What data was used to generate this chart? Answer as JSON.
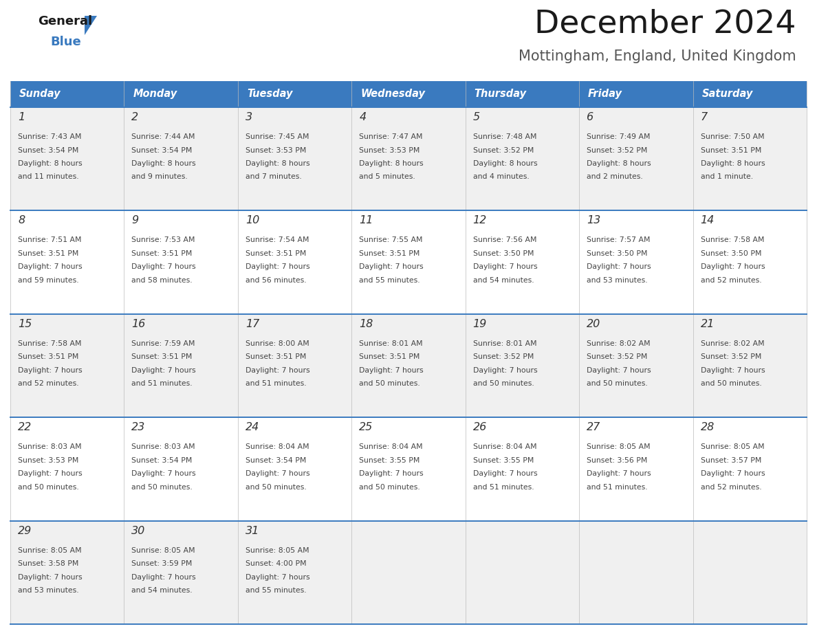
{
  "title": "December 2024",
  "subtitle": "Mottingham, England, United Kingdom",
  "header_bg": "#3a7abf",
  "header_text": "#ffffff",
  "header_days": [
    "Sunday",
    "Monday",
    "Tuesday",
    "Wednesday",
    "Thursday",
    "Friday",
    "Saturday"
  ],
  "row_bg_odd": "#f0f0f0",
  "row_bg_even": "#ffffff",
  "divider_color": "#3a7abf",
  "text_color": "#444444",
  "day_num_color": "#333333",
  "calendar_data": [
    [
      {
        "day": 1,
        "sunrise": "7:43 AM",
        "sunset": "3:54 PM",
        "daylight": "8 hours",
        "daylight2": "and 11 minutes."
      },
      {
        "day": 2,
        "sunrise": "7:44 AM",
        "sunset": "3:54 PM",
        "daylight": "8 hours",
        "daylight2": "and 9 minutes."
      },
      {
        "day": 3,
        "sunrise": "7:45 AM",
        "sunset": "3:53 PM",
        "daylight": "8 hours",
        "daylight2": "and 7 minutes."
      },
      {
        "day": 4,
        "sunrise": "7:47 AM",
        "sunset": "3:53 PM",
        "daylight": "8 hours",
        "daylight2": "and 5 minutes."
      },
      {
        "day": 5,
        "sunrise": "7:48 AM",
        "sunset": "3:52 PM",
        "daylight": "8 hours",
        "daylight2": "and 4 minutes."
      },
      {
        "day": 6,
        "sunrise": "7:49 AM",
        "sunset": "3:52 PM",
        "daylight": "8 hours",
        "daylight2": "and 2 minutes."
      },
      {
        "day": 7,
        "sunrise": "7:50 AM",
        "sunset": "3:51 PM",
        "daylight": "8 hours",
        "daylight2": "and 1 minute."
      }
    ],
    [
      {
        "day": 8,
        "sunrise": "7:51 AM",
        "sunset": "3:51 PM",
        "daylight": "7 hours",
        "daylight2": "and 59 minutes."
      },
      {
        "day": 9,
        "sunrise": "7:53 AM",
        "sunset": "3:51 PM",
        "daylight": "7 hours",
        "daylight2": "and 58 minutes."
      },
      {
        "day": 10,
        "sunrise": "7:54 AM",
        "sunset": "3:51 PM",
        "daylight": "7 hours",
        "daylight2": "and 56 minutes."
      },
      {
        "day": 11,
        "sunrise": "7:55 AM",
        "sunset": "3:51 PM",
        "daylight": "7 hours",
        "daylight2": "and 55 minutes."
      },
      {
        "day": 12,
        "sunrise": "7:56 AM",
        "sunset": "3:50 PM",
        "daylight": "7 hours",
        "daylight2": "and 54 minutes."
      },
      {
        "day": 13,
        "sunrise": "7:57 AM",
        "sunset": "3:50 PM",
        "daylight": "7 hours",
        "daylight2": "and 53 minutes."
      },
      {
        "day": 14,
        "sunrise": "7:58 AM",
        "sunset": "3:50 PM",
        "daylight": "7 hours",
        "daylight2": "and 52 minutes."
      }
    ],
    [
      {
        "day": 15,
        "sunrise": "7:58 AM",
        "sunset": "3:51 PM",
        "daylight": "7 hours",
        "daylight2": "and 52 minutes."
      },
      {
        "day": 16,
        "sunrise": "7:59 AM",
        "sunset": "3:51 PM",
        "daylight": "7 hours",
        "daylight2": "and 51 minutes."
      },
      {
        "day": 17,
        "sunrise": "8:00 AM",
        "sunset": "3:51 PM",
        "daylight": "7 hours",
        "daylight2": "and 51 minutes."
      },
      {
        "day": 18,
        "sunrise": "8:01 AM",
        "sunset": "3:51 PM",
        "daylight": "7 hours",
        "daylight2": "and 50 minutes."
      },
      {
        "day": 19,
        "sunrise": "8:01 AM",
        "sunset": "3:52 PM",
        "daylight": "7 hours",
        "daylight2": "and 50 minutes."
      },
      {
        "day": 20,
        "sunrise": "8:02 AM",
        "sunset": "3:52 PM",
        "daylight": "7 hours",
        "daylight2": "and 50 minutes."
      },
      {
        "day": 21,
        "sunrise": "8:02 AM",
        "sunset": "3:52 PM",
        "daylight": "7 hours",
        "daylight2": "and 50 minutes."
      }
    ],
    [
      {
        "day": 22,
        "sunrise": "8:03 AM",
        "sunset": "3:53 PM",
        "daylight": "7 hours",
        "daylight2": "and 50 minutes."
      },
      {
        "day": 23,
        "sunrise": "8:03 AM",
        "sunset": "3:54 PM",
        "daylight": "7 hours",
        "daylight2": "and 50 minutes."
      },
      {
        "day": 24,
        "sunrise": "8:04 AM",
        "sunset": "3:54 PM",
        "daylight": "7 hours",
        "daylight2": "and 50 minutes."
      },
      {
        "day": 25,
        "sunrise": "8:04 AM",
        "sunset": "3:55 PM",
        "daylight": "7 hours",
        "daylight2": "and 50 minutes."
      },
      {
        "day": 26,
        "sunrise": "8:04 AM",
        "sunset": "3:55 PM",
        "daylight": "7 hours",
        "daylight2": "and 51 minutes."
      },
      {
        "day": 27,
        "sunrise": "8:05 AM",
        "sunset": "3:56 PM",
        "daylight": "7 hours",
        "daylight2": "and 51 minutes."
      },
      {
        "day": 28,
        "sunrise": "8:05 AM",
        "sunset": "3:57 PM",
        "daylight": "7 hours",
        "daylight2": "and 52 minutes."
      }
    ],
    [
      {
        "day": 29,
        "sunrise": "8:05 AM",
        "sunset": "3:58 PM",
        "daylight": "7 hours",
        "daylight2": "and 53 minutes."
      },
      {
        "day": 30,
        "sunrise": "8:05 AM",
        "sunset": "3:59 PM",
        "daylight": "7 hours",
        "daylight2": "and 54 minutes."
      },
      {
        "day": 31,
        "sunrise": "8:05 AM",
        "sunset": "4:00 PM",
        "daylight": "7 hours",
        "daylight2": "and 55 minutes."
      },
      null,
      null,
      null,
      null
    ]
  ]
}
